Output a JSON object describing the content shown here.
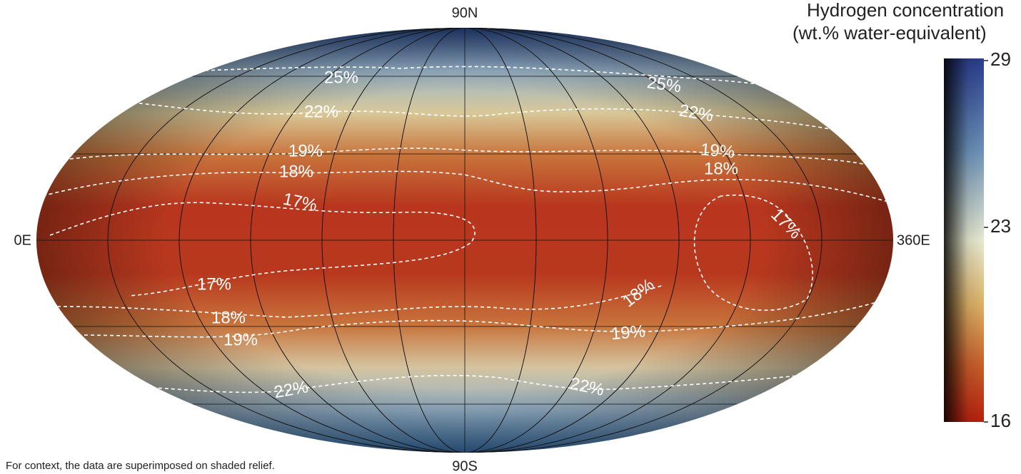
{
  "map": {
    "title_lines": [
      "Hydrogen concentration",
      "(wt.% water-equivalent)"
    ],
    "labels": {
      "north": "90N",
      "south": "90S",
      "west": "0E",
      "east": "360E"
    },
    "contour_labels": [
      "25%",
      "25%",
      "22%",
      "22%",
      "19%",
      "19%",
      "18%",
      "18%",
      "17%",
      "17%",
      "17%",
      "18%",
      "18%",
      "19%",
      "19%",
      "22%",
      "22%"
    ],
    "footnote": "For context, the data are superimposed on shaded relief."
  },
  "colorbar": {
    "ylim": [
      16,
      29
    ],
    "yticks": [
      16,
      23,
      29
    ]
  }
}
